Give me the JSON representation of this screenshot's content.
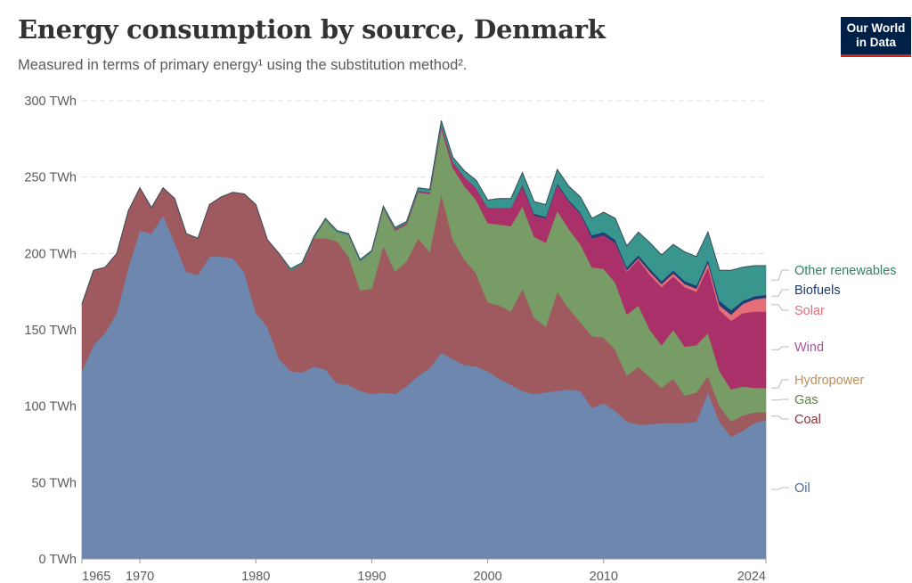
{
  "header": {
    "title": "Energy consumption by source, Denmark",
    "subtitle": "Measured in terms of primary energy¹ using the substitution method².",
    "logo_line1": "Our World",
    "logo_line2": "in Data"
  },
  "chart_data": {
    "type": "area",
    "stacked": true,
    "title": "Energy consumption by source, Denmark",
    "subtitle": "Measured in terms of primary energy¹ using the substitution method².",
    "xlabel": "",
    "ylabel": "",
    "unit": "TWh",
    "xlim": [
      1965,
      2024
    ],
    "ylim": [
      0,
      300
    ],
    "yticks": [
      0,
      50,
      100,
      150,
      200,
      250,
      300
    ],
    "ytick_labels": [
      "0 TWh",
      "50 TWh",
      "100 TWh",
      "150 TWh",
      "200 TWh",
      "250 TWh",
      "300 TWh"
    ],
    "xticks": [
      1965,
      1970,
      1980,
      1990,
      2000,
      2010,
      2024
    ],
    "xtick_labels": [
      "1965",
      "1970",
      "1980",
      "1990",
      "2000",
      "2010",
      "2024"
    ],
    "grid": "horizontal-dashed",
    "legend": "right (inline labels)",
    "x": [
      1965,
      1966,
      1967,
      1968,
      1969,
      1970,
      1971,
      1972,
      1973,
      1974,
      1975,
      1976,
      1977,
      1978,
      1979,
      1980,
      1981,
      1982,
      1983,
      1984,
      1985,
      1986,
      1987,
      1988,
      1989,
      1990,
      1991,
      1992,
      1993,
      1994,
      1995,
      1996,
      1997,
      1998,
      1999,
      2000,
      2001,
      2002,
      2003,
      2004,
      2005,
      2006,
      2007,
      2008,
      2009,
      2010,
      2011,
      2012,
      2013,
      2014,
      2015,
      2016,
      2017,
      2018,
      2019,
      2020,
      2021,
      2022,
      2023,
      2024
    ],
    "series": [
      {
        "name": "Oil",
        "color": "#6d87af",
        "values": [
          123,
          140,
          148,
          161,
          191,
          215,
          213,
          225,
          207,
          188,
          186,
          198,
          198,
          197,
          188,
          161,
          152,
          131,
          123,
          122,
          126,
          124,
          115,
          114,
          110,
          108,
          109,
          108,
          113,
          120,
          125,
          135,
          131,
          127,
          126,
          123,
          118,
          114,
          110,
          108,
          109,
          110,
          111,
          110,
          99,
          102,
          97,
          90,
          88,
          88,
          89,
          89,
          89,
          90,
          109,
          90,
          80,
          84,
          89,
          91
        ]
      },
      {
        "name": "Coal",
        "color": "#9e5a5e",
        "values": [
          44,
          49,
          43,
          39,
          37,
          28,
          17,
          18,
          29,
          25,
          24,
          34,
          39,
          43,
          51,
          71,
          57,
          69,
          66,
          71,
          84,
          86,
          93,
          84,
          66,
          69,
          96,
          80,
          82,
          90,
          76,
          104,
          78,
          69,
          61,
          45,
          48,
          48,
          67,
          50,
          43,
          65,
          53,
          45,
          47,
          43,
          40,
          30,
          38,
          31,
          23,
          29,
          18,
          19,
          11,
          10,
          10,
          10,
          7,
          5
        ]
      },
      {
        "name": "Gas",
        "color": "#789c66",
        "values": [
          0,
          0,
          0,
          0,
          0,
          0,
          0,
          0,
          0,
          0,
          0,
          0,
          0,
          0,
          0,
          0,
          0,
          0,
          0,
          0,
          0,
          12,
          6,
          14,
          19,
          24,
          25,
          27,
          24,
          30,
          38,
          43,
          47,
          48,
          48,
          52,
          53,
          56,
          54,
          53,
          55,
          53,
          52,
          51,
          45,
          45,
          44,
          40,
          40,
          31,
          28,
          32,
          32,
          31,
          28,
          23,
          21,
          19,
          16,
          16
        ]
      },
      {
        "name": "Hydropower",
        "color": "#c1762c",
        "values": [
          0,
          0,
          0,
          0,
          0,
          0,
          0,
          0,
          0,
          0,
          0,
          0,
          0,
          0,
          0,
          0,
          0,
          0,
          0,
          0,
          0,
          0,
          0,
          0,
          0,
          0,
          0,
          0,
          0,
          0,
          0,
          0,
          0,
          0,
          0,
          0,
          0,
          0,
          0,
          0,
          0,
          0,
          0,
          0,
          0,
          0,
          0,
          0,
          0,
          0,
          0,
          0,
          0,
          0,
          0,
          0,
          0,
          0,
          0,
          0
        ]
      },
      {
        "name": "Wind",
        "color": "#aa3069",
        "values": [
          0,
          0,
          0,
          0,
          0,
          0,
          0,
          0,
          0,
          0,
          0,
          0,
          0,
          0,
          0,
          0,
          0,
          0,
          0,
          0,
          0,
          0,
          0,
          0,
          0,
          0,
          0,
          1,
          1,
          1,
          1,
          2,
          4,
          6,
          8,
          10,
          11,
          12,
          13,
          14,
          16,
          17,
          18,
          20,
          19,
          22,
          26,
          28,
          30,
          36,
          38,
          35,
          39,
          35,
          43,
          40,
          45,
          48,
          50,
          50
        ]
      },
      {
        "name": "Solar",
        "color": "#e56e79",
        "values": [
          0,
          0,
          0,
          0,
          0,
          0,
          0,
          0,
          0,
          0,
          0,
          0,
          0,
          0,
          0,
          0,
          0,
          0,
          0,
          0,
          0,
          0,
          0,
          0,
          0,
          0,
          0,
          0,
          0,
          0,
          0,
          0,
          0,
          0,
          0,
          0,
          0,
          0,
          0,
          0,
          0,
          0,
          0,
          0,
          0,
          0,
          0,
          1,
          1,
          2,
          2,
          2,
          2,
          2,
          3,
          3,
          4,
          6,
          8,
          9
        ]
      },
      {
        "name": "Biofuels",
        "color": "#1f3f73",
        "values": [
          0,
          0,
          0,
          0,
          0,
          0,
          0,
          0,
          0,
          0,
          0,
          0,
          0,
          0,
          0,
          0,
          0,
          0,
          0,
          0,
          0,
          0,
          0,
          0,
          0,
          0,
          0,
          0,
          0,
          0,
          0,
          0,
          0,
          0,
          0,
          0,
          0,
          0,
          1,
          1,
          1,
          1,
          1,
          1,
          2,
          2,
          2,
          2,
          2,
          2,
          2,
          2,
          2,
          2,
          2,
          3,
          3,
          2,
          2,
          2
        ]
      },
      {
        "name": "Other renewables",
        "color": "#38968f",
        "values": [
          0,
          0,
          0,
          0,
          0,
          0,
          0,
          0,
          0,
          0,
          0,
          0,
          0,
          0,
          0,
          0,
          0,
          0,
          1,
          1,
          1,
          1,
          1,
          1,
          1,
          1,
          1,
          1,
          1,
          2,
          2,
          3,
          3,
          4,
          5,
          5,
          6,
          6,
          8,
          8,
          8,
          9,
          9,
          10,
          11,
          13,
          14,
          14,
          15,
          17,
          17,
          17,
          19,
          19,
          18,
          20,
          26,
          22,
          20,
          19
        ]
      }
    ]
  }
}
